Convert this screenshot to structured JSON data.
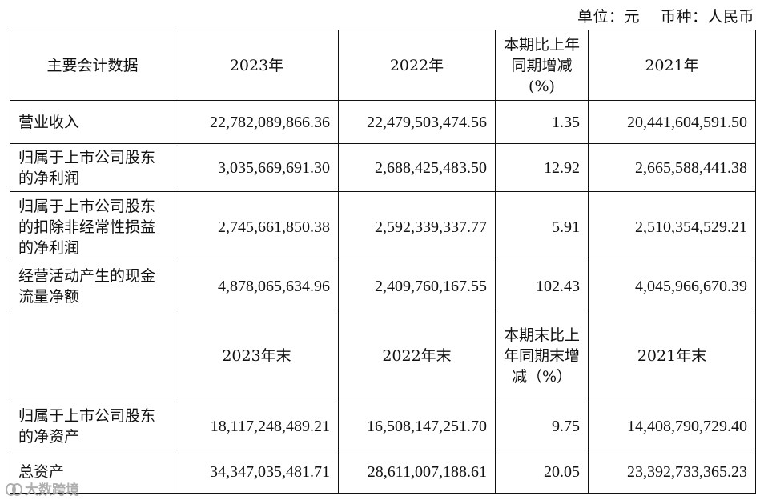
{
  "unit": {
    "label_unit": "单位：元",
    "label_currency": "币种：人民币"
  },
  "header1": {
    "item": "主要会计数据",
    "y2023": "2023年",
    "y2022": "2022年",
    "change": "本期比上年同期增减(%)",
    "y2021": "2021年"
  },
  "rows1": [
    {
      "label": "营业收入",
      "v2023": "22,782,089,866.36",
      "v2022": "22,479,503,474.56",
      "change": "1.35",
      "v2021": "20,441,604,591.50"
    },
    {
      "label": "归属于上市公司股东的净利润",
      "v2023": "3,035,669,691.30",
      "v2022": "2,688,425,483.50",
      "change": "12.92",
      "v2021": "2,665,588,441.38"
    },
    {
      "label": "归属于上市公司股东的扣除非经常性损益的净利润",
      "v2023": "2,745,661,850.38",
      "v2022": "2,592,339,337.77",
      "change": "5.91",
      "v2021": "2,510,354,529.21"
    },
    {
      "label": "经营活动产生的现金流量净额",
      "v2023": "4,878,065,634.96",
      "v2022": "2,409,760,167.55",
      "change": "102.43",
      "v2021": "4,045,966,670.39"
    }
  ],
  "header2": {
    "item": "",
    "y2023": "2023年末",
    "y2022": "2022年末",
    "change": "本期末比上年同期末增减（%）",
    "y2021": "2021年末"
  },
  "rows2": [
    {
      "label": "归属于上市公司股东的净资产",
      "v2023": "18,117,248,489.21",
      "v2022": "16,508,147,251.70",
      "change": "9.75",
      "v2021": "14,408,790,729.40"
    },
    {
      "label": "总资产",
      "v2023": "34,347,035,481.71",
      "v2022": "28,611,007,188.61",
      "change": "20.05",
      "v2021": "23,392,733,365.23"
    }
  ],
  "watermark": "大数跨境",
  "icons": {
    "watermark_logo": "weibo-like-logo-icon"
  }
}
